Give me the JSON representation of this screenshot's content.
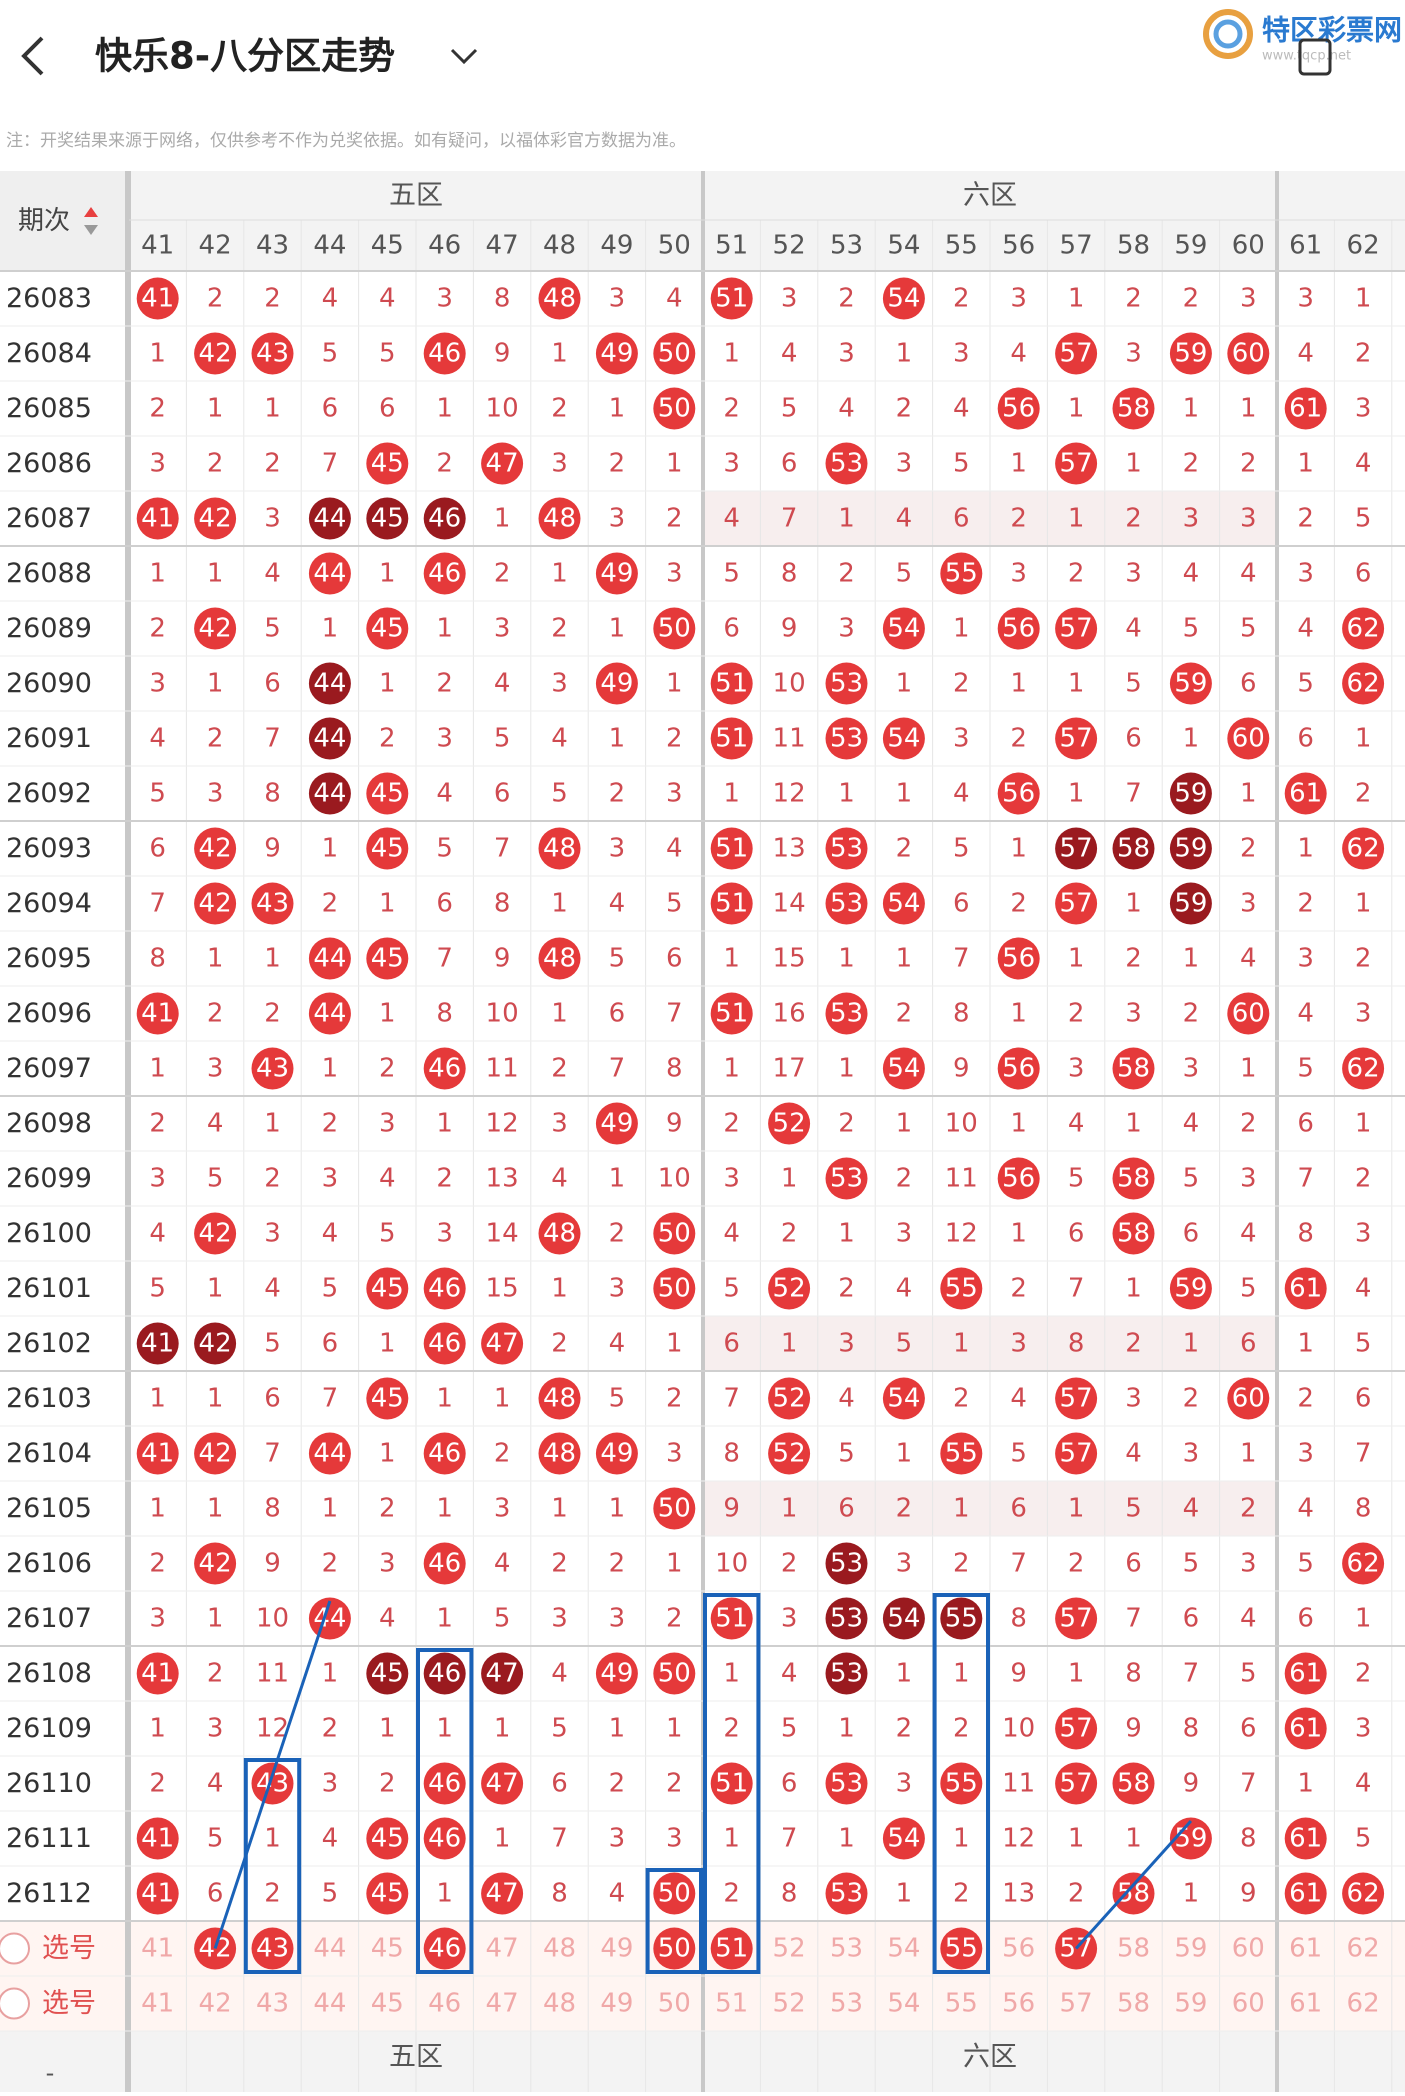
{
  "header": {
    "title": "快乐8-八分区走势",
    "logo": "特区彩票网",
    "logo_url": "www.tqcp.net"
  },
  "note": "注：开奖结果来源于网络，仅供参考不作为兑奖依据。如有疑问，以福体彩官方数据为准。",
  "table": {
    "issue_label": "期次",
    "zones": [
      "五区",
      "六区"
    ],
    "columns": [
      41,
      42,
      43,
      44,
      45,
      46,
      47,
      48,
      49,
      50,
      51,
      52,
      53,
      54,
      55,
      56,
      57,
      58,
      59,
      60,
      61,
      62
    ],
    "rows": [
      {
        "issue": "26083",
        "cells": [
          41,
          2,
          2,
          4,
          4,
          3,
          8,
          48,
          3,
          4,
          51,
          3,
          2,
          54,
          2,
          3,
          1,
          2,
          2,
          3,
          3,
          1
        ],
        "dark": []
      },
      {
        "issue": "26084",
        "cells": [
          1,
          42,
          43,
          5,
          5,
          46,
          9,
          1,
          49,
          50,
          1,
          4,
          3,
          1,
          3,
          4,
          57,
          3,
          59,
          60,
          4,
          2
        ],
        "dark": []
      },
      {
        "issue": "26085",
        "cells": [
          2,
          1,
          1,
          6,
          6,
          1,
          10,
          2,
          1,
          50,
          2,
          5,
          4,
          2,
          4,
          56,
          1,
          58,
          1,
          1,
          61,
          3
        ],
        "dark": []
      },
      {
        "issue": "26086",
        "cells": [
          3,
          2,
          2,
          7,
          45,
          2,
          47,
          3,
          2,
          1,
          3,
          6,
          53,
          3,
          5,
          1,
          57,
          1,
          2,
          2,
          1,
          4
        ],
        "dark": []
      },
      {
        "issue": "26087",
        "cells": [
          41,
          42,
          3,
          44,
          45,
          46,
          1,
          48,
          3,
          2,
          4,
          7,
          1,
          4,
          6,
          2,
          1,
          2,
          3,
          3,
          2,
          5
        ],
        "dark": [
          3,
          4,
          5
        ]
      },
      {
        "issue": "26088",
        "cells": [
          1,
          1,
          4,
          44,
          1,
          46,
          2,
          1,
          49,
          3,
          5,
          8,
          2,
          5,
          55,
          3,
          2,
          3,
          4,
          4,
          3,
          6
        ],
        "dark": []
      },
      {
        "issue": "26089",
        "cells": [
          2,
          42,
          5,
          1,
          45,
          1,
          3,
          2,
          1,
          50,
          6,
          9,
          3,
          54,
          1,
          56,
          57,
          4,
          5,
          5,
          4,
          62
        ],
        "dark": []
      },
      {
        "issue": "26090",
        "cells": [
          3,
          1,
          6,
          44,
          1,
          2,
          4,
          3,
          49,
          1,
          51,
          10,
          53,
          1,
          2,
          1,
          1,
          5,
          59,
          6,
          5,
          62
        ],
        "dark": [
          3
        ]
      },
      {
        "issue": "26091",
        "cells": [
          4,
          2,
          7,
          44,
          2,
          3,
          5,
          4,
          1,
          2,
          51,
          11,
          53,
          54,
          3,
          2,
          57,
          6,
          1,
          60,
          6,
          1
        ],
        "dark": [
          3
        ]
      },
      {
        "issue": "26092",
        "cells": [
          5,
          3,
          8,
          44,
          45,
          4,
          6,
          5,
          2,
          3,
          1,
          12,
          1,
          1,
          4,
          56,
          1,
          7,
          59,
          1,
          61,
          2
        ],
        "dark": [
          3,
          18
        ]
      },
      {
        "issue": "26093",
        "cells": [
          6,
          42,
          9,
          1,
          45,
          5,
          7,
          48,
          3,
          4,
          51,
          13,
          53,
          2,
          5,
          1,
          57,
          58,
          59,
          2,
          1,
          62
        ],
        "dark": [
          16,
          17,
          18
        ]
      },
      {
        "issue": "26094",
        "cells": [
          7,
          42,
          43,
          2,
          1,
          6,
          8,
          1,
          4,
          5,
          51,
          14,
          53,
          54,
          6,
          2,
          57,
          1,
          59,
          3,
          2,
          1
        ],
        "dark": [
          18
        ]
      },
      {
        "issue": "26095",
        "cells": [
          8,
          1,
          1,
          44,
          45,
          7,
          9,
          48,
          5,
          6,
          1,
          15,
          1,
          1,
          7,
          56,
          1,
          2,
          1,
          4,
          3,
          2
        ],
        "dark": []
      },
      {
        "issue": "26096",
        "cells": [
          41,
          2,
          2,
          44,
          1,
          8,
          10,
          1,
          6,
          7,
          51,
          16,
          53,
          2,
          8,
          1,
          2,
          3,
          2,
          60,
          4,
          3
        ],
        "dark": []
      },
      {
        "issue": "26097",
        "cells": [
          1,
          3,
          43,
          1,
          2,
          46,
          11,
          2,
          7,
          8,
          1,
          17,
          1,
          54,
          9,
          56,
          3,
          58,
          3,
          1,
          5,
          62
        ],
        "dark": []
      },
      {
        "issue": "26098",
        "cells": [
          2,
          4,
          1,
          2,
          3,
          1,
          12,
          3,
          49,
          9,
          2,
          52,
          2,
          1,
          10,
          1,
          4,
          1,
          4,
          2,
          6,
          1
        ],
        "dark": []
      },
      {
        "issue": "26099",
        "cells": [
          3,
          5,
          2,
          3,
          4,
          2,
          13,
          4,
          1,
          10,
          3,
          1,
          53,
          2,
          11,
          56,
          5,
          58,
          5,
          3,
          7,
          2
        ],
        "dark": []
      },
      {
        "issue": "26100",
        "cells": [
          4,
          42,
          3,
          4,
          5,
          3,
          14,
          48,
          2,
          50,
          4,
          2,
          1,
          3,
          12,
          1,
          6,
          58,
          6,
          4,
          8,
          3
        ],
        "dark": []
      },
      {
        "issue": "26101",
        "cells": [
          5,
          1,
          4,
          5,
          45,
          46,
          15,
          1,
          3,
          50,
          5,
          52,
          2,
          4,
          55,
          2,
          7,
          1,
          59,
          5,
          61,
          4
        ],
        "dark": []
      },
      {
        "issue": "26102",
        "cells": [
          41,
          42,
          5,
          6,
          1,
          46,
          47,
          2,
          4,
          1,
          6,
          1,
          3,
          5,
          1,
          3,
          8,
          2,
          1,
          6,
          1,
          5
        ],
        "dark": [
          0,
          1
        ]
      },
      {
        "issue": "26103",
        "cells": [
          1,
          1,
          6,
          7,
          45,
          1,
          1,
          48,
          5,
          2,
          7,
          52,
          4,
          54,
          2,
          4,
          57,
          3,
          2,
          60,
          2,
          6
        ],
        "dark": []
      },
      {
        "issue": "26104",
        "cells": [
          41,
          42,
          7,
          44,
          1,
          46,
          2,
          48,
          49,
          3,
          8,
          52,
          5,
          1,
          55,
          5,
          57,
          4,
          3,
          1,
          3,
          7
        ],
        "dark": []
      },
      {
        "issue": "26105",
        "cells": [
          1,
          1,
          8,
          1,
          2,
          1,
          3,
          1,
          1,
          50,
          9,
          1,
          6,
          2,
          1,
          6,
          1,
          5,
          4,
          2,
          4,
          8
        ],
        "dark": []
      },
      {
        "issue": "26106",
        "cells": [
          2,
          42,
          9,
          2,
          3,
          46,
          4,
          2,
          2,
          1,
          10,
          2,
          53,
          3,
          2,
          7,
          2,
          6,
          5,
          3,
          5,
          62
        ],
        "dark": [
          12
        ]
      },
      {
        "issue": "26107",
        "cells": [
          3,
          1,
          10,
          44,
          4,
          1,
          5,
          3,
          3,
          2,
          51,
          3,
          53,
          54,
          55,
          8,
          57,
          7,
          6,
          4,
          6,
          1
        ],
        "dark": [
          12,
          13,
          14
        ]
      },
      {
        "issue": "26108",
        "cells": [
          41,
          2,
          11,
          1,
          45,
          46,
          47,
          4,
          49,
          50,
          1,
          4,
          53,
          1,
          1,
          9,
          1,
          8,
          7,
          5,
          61,
          2
        ],
        "dark": [
          4,
          5,
          6,
          12
        ]
      },
      {
        "issue": "26109",
        "cells": [
          1,
          3,
          12,
          2,
          1,
          1,
          1,
          5,
          1,
          1,
          2,
          5,
          1,
          2,
          2,
          10,
          57,
          9,
          8,
          6,
          61,
          3
        ],
        "dark": []
      },
      {
        "issue": "26110",
        "cells": [
          2,
          4,
          43,
          3,
          2,
          46,
          47,
          6,
          2,
          2,
          51,
          6,
          53,
          3,
          55,
          11,
          57,
          58,
          9,
          7,
          1,
          4
        ],
        "dark": []
      },
      {
        "issue": "26111",
        "cells": [
          41,
          5,
          1,
          4,
          45,
          46,
          1,
          7,
          3,
          3,
          1,
          7,
          1,
          54,
          1,
          12,
          1,
          1,
          59,
          8,
          61,
          5
        ],
        "dark": []
      },
      {
        "issue": "26112",
        "cells": [
          41,
          6,
          2,
          5,
          45,
          1,
          47,
          8,
          4,
          50,
          2,
          8,
          53,
          1,
          2,
          13,
          2,
          58,
          1,
          9,
          61,
          62
        ],
        "dark": []
      }
    ]
  },
  "select_rows": [
    {
      "label": "选号",
      "cells": [
        41,
        42,
        43,
        44,
        45,
        46,
        47,
        48,
        49,
        50,
        51,
        52,
        53,
        54,
        55,
        56,
        57,
        58,
        59,
        60,
        61,
        62
      ],
      "picked": [
        1,
        2,
        5,
        9,
        10,
        14,
        16
      ]
    },
    {
      "label": "选号",
      "cells": [
        41,
        42,
        43,
        44,
        45,
        46,
        47,
        48,
        49,
        50,
        51,
        52,
        53,
        54,
        55,
        56,
        57,
        58,
        59,
        60,
        61,
        62
      ],
      "picked": []
    }
  ],
  "footer": {
    "label": "-",
    "zones": [
      "五区",
      "六区"
    ]
  }
}
